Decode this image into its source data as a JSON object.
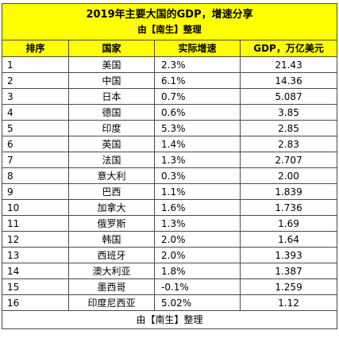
{
  "title": "2019年主要大国的GDP，增速分享",
  "subtitle": "由【南生】整理",
  "columns": [
    "排序",
    "国家",
    "实际增速",
    "GDP，万亿美元"
  ],
  "rows": [
    {
      "rank": "1",
      "country": "美国",
      "growth": "2.3%",
      "gdp": "21.43"
    },
    {
      "rank": "2",
      "country": "中国",
      "growth": "6.1%",
      "gdp": "14.36"
    },
    {
      "rank": "3",
      "country": "日本",
      "growth": "0.7%",
      "gdp": "5.087"
    },
    {
      "rank": "4",
      "country": "德国",
      "growth": "0.6%",
      "gdp": "3.85"
    },
    {
      "rank": "5",
      "country": "印度",
      "growth": "5.3%",
      "gdp": "2.85"
    },
    {
      "rank": "6",
      "country": "英国",
      "growth": "1.4%",
      "gdp": "2.83"
    },
    {
      "rank": "7",
      "country": "法国",
      "growth": "1.3%",
      "gdp": "2.707"
    },
    {
      "rank": "8",
      "country": "意大利",
      "growth": "0.3%",
      "gdp": "2.00"
    },
    {
      "rank": "9",
      "country": "巴西",
      "growth": "1.1%",
      "gdp": "1.839"
    },
    {
      "rank": "10",
      "country": "加拿大",
      "growth": "1.6%",
      "gdp": "1.736"
    },
    {
      "rank": "11",
      "country": "俄罗斯",
      "growth": "1.3%",
      "gdp": "1.69"
    },
    {
      "rank": "12",
      "country": "韩国",
      "growth": "2.0%",
      "gdp": "1.64"
    },
    {
      "rank": "13",
      "country": "西班牙",
      "growth": "2.0%",
      "gdp": "1.393"
    },
    {
      "rank": "14",
      "country": "澳大利亚",
      "growth": "1.8%",
      "gdp": "1.387"
    },
    {
      "rank": "15",
      "country": "墨西哥",
      "growth": "-0.1%",
      "gdp": "1.259"
    },
    {
      "rank": "16",
      "country": "印度尼西亚",
      "growth": "5.02%",
      "gdp": "1.12"
    }
  ],
  "footer": "由【南生】整理",
  "colors": {
    "header_fill": "#ffff00",
    "border": "#4a4a4a"
  }
}
